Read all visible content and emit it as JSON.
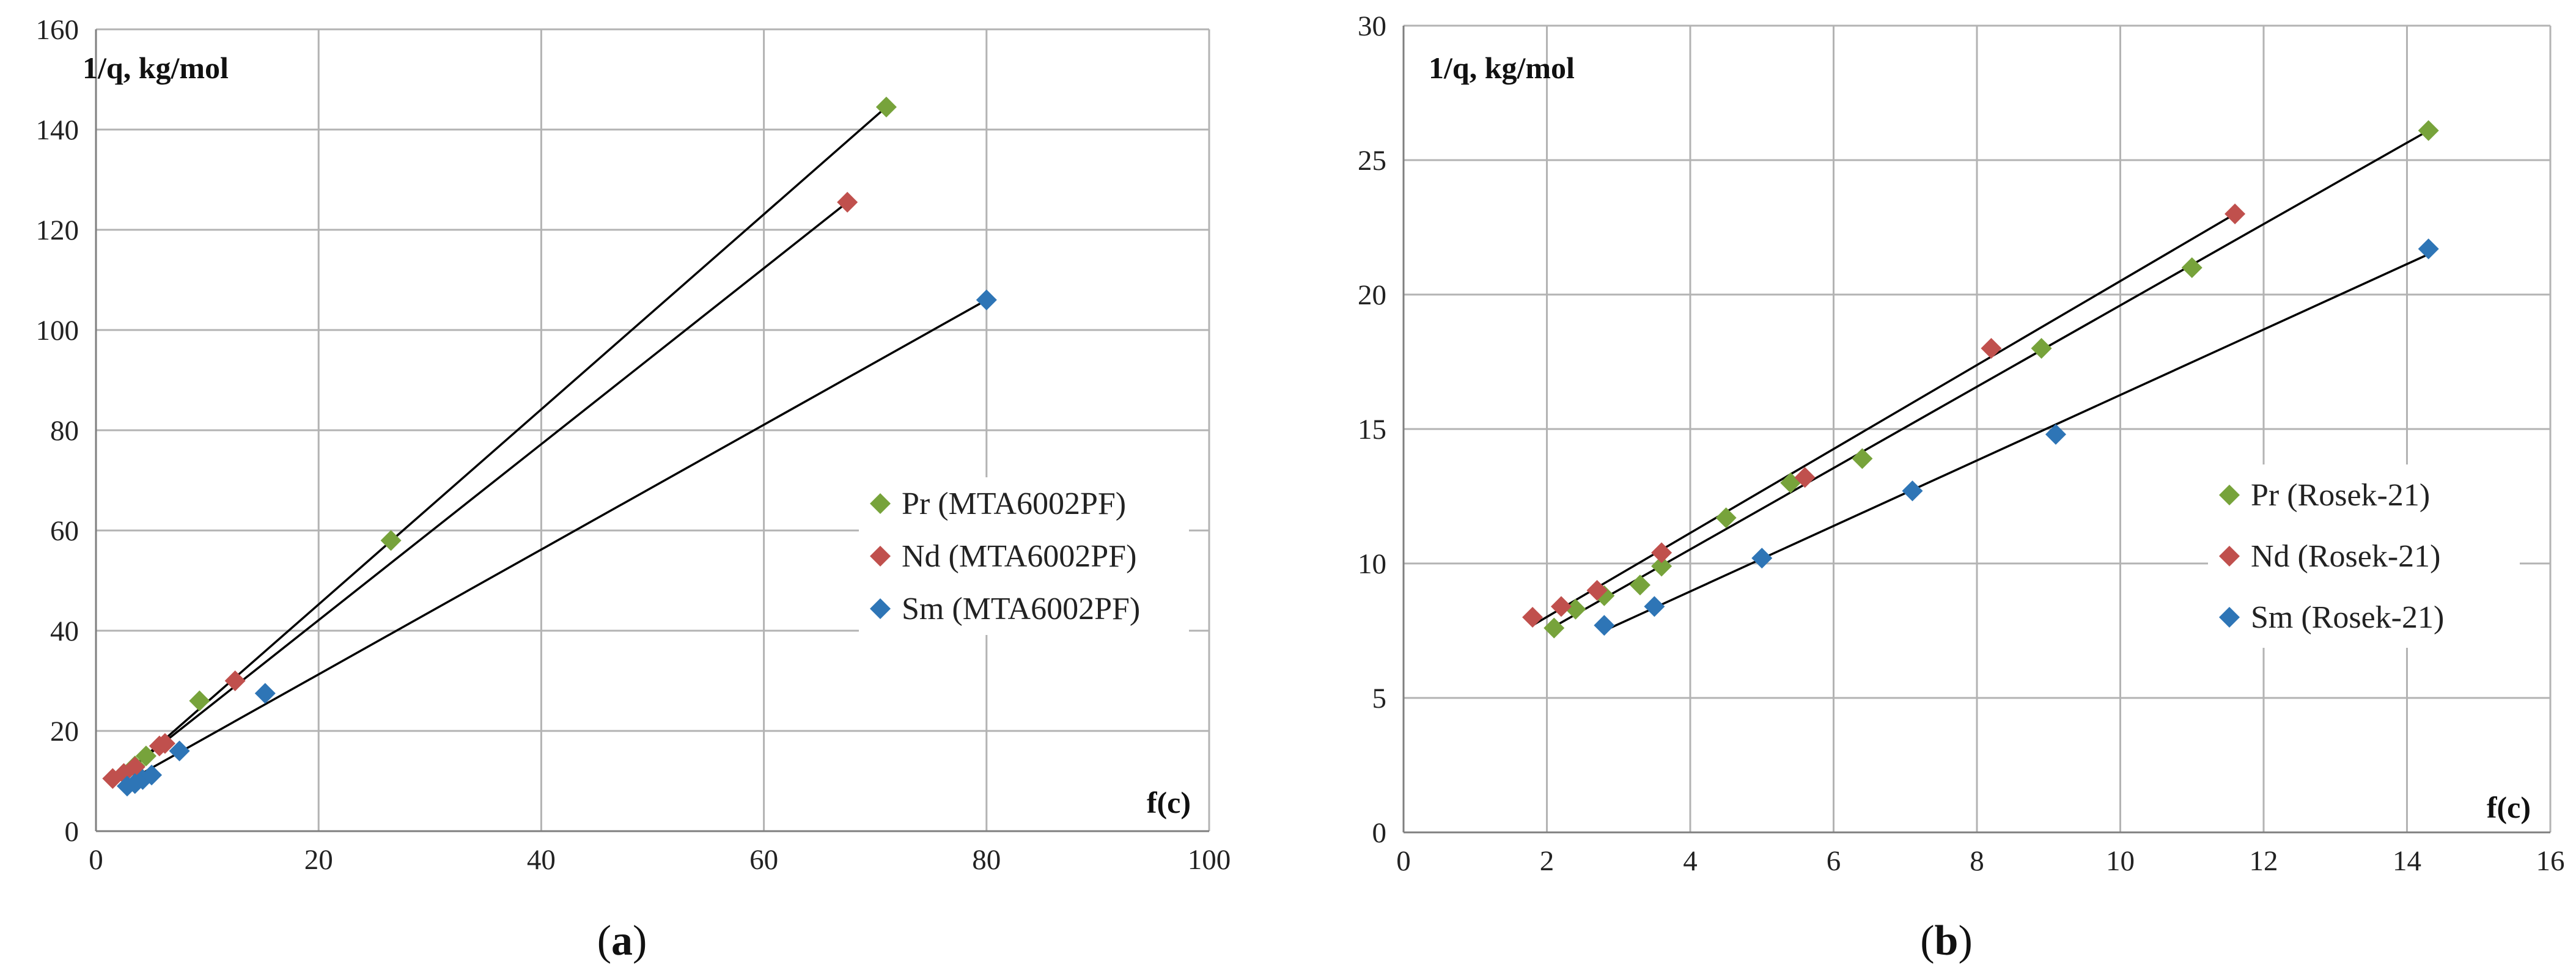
{
  "chart_data": [
    {
      "type": "scatter",
      "panel_label": {
        "open": "(",
        "letter": "a",
        "close": ")"
      },
      "xlabel": "f(c)",
      "ylabel": "1/q, kg/mol",
      "xlim": [
        0,
        100
      ],
      "ylim": [
        0,
        160
      ],
      "xticks": [
        0,
        20,
        40,
        60,
        80,
        100
      ],
      "yticks": [
        0,
        20,
        40,
        60,
        80,
        100,
        120,
        140,
        160
      ],
      "grid": true,
      "legend_position": "right",
      "series": [
        {
          "name": "Pr (MTA6002PF)",
          "color": "#77A33B",
          "points": [
            [
              2.5,
              11.5
            ],
            [
              3.5,
              13.0
            ],
            [
              4.5,
              15.0
            ],
            [
              9.3,
              26.0
            ],
            [
              26.5,
              58.0
            ],
            [
              71.0,
              144.5
            ]
          ],
          "fit": [
            [
              2.3,
              10.8
            ],
            [
              71.0,
              144.5
            ]
          ]
        },
        {
          "name": "Nd (MTA6002PF)",
          "color": "#C0504D",
          "points": [
            [
              1.5,
              10.5
            ],
            [
              2.5,
              11.5
            ],
            [
              3.5,
              12.8
            ],
            [
              5.7,
              17.0
            ],
            [
              6.2,
              17.5
            ],
            [
              12.5,
              30.0
            ],
            [
              67.5,
              125.5
            ]
          ],
          "fit": [
            [
              2.0,
              10.5
            ],
            [
              67.5,
              125.5
            ]
          ]
        },
        {
          "name": "Sm (MTA6002PF)",
          "color": "#2E75B6",
          "points": [
            [
              2.8,
              9.0
            ],
            [
              3.5,
              9.5
            ],
            [
              4.2,
              10.3
            ],
            [
              5.0,
              11.2
            ],
            [
              7.5,
              16.0
            ],
            [
              15.2,
              27.5
            ],
            [
              80.0,
              106.0
            ]
          ],
          "fit": [
            [
              2.5,
              9.5
            ],
            [
              80.0,
              106.0
            ]
          ]
        }
      ]
    },
    {
      "type": "scatter",
      "panel_label": {
        "open": "(",
        "letter": "b",
        "close": ")"
      },
      "xlabel": "f(c)",
      "ylabel": "1/q, kg/mol",
      "xlim": [
        0,
        16
      ],
      "ylim": [
        0,
        30
      ],
      "xticks": [
        0,
        2,
        4,
        6,
        8,
        10,
        12,
        14,
        16
      ],
      "yticks": [
        0,
        5,
        10,
        15,
        20,
        25,
        30
      ],
      "grid": true,
      "legend_position": "right",
      "series": [
        {
          "name": "Pr (Rosek-21)",
          "color": "#77A33B",
          "points": [
            [
              2.1,
              7.6
            ],
            [
              2.4,
              8.3
            ],
            [
              2.8,
              8.8
            ],
            [
              3.3,
              9.2
            ],
            [
              3.6,
              9.9
            ],
            [
              4.5,
              11.7
            ],
            [
              5.4,
              13.0
            ],
            [
              6.4,
              13.9
            ],
            [
              8.9,
              18.0
            ],
            [
              11.0,
              21.0
            ],
            [
              14.3,
              26.1
            ]
          ],
          "fit": [
            [
              2.0,
              7.5
            ],
            [
              14.3,
              26.1
            ]
          ]
        },
        {
          "name": "Nd (Rosek-21)",
          "color": "#C0504D",
          "points": [
            [
              1.8,
              8.0
            ],
            [
              2.2,
              8.4
            ],
            [
              2.7,
              9.0
            ],
            [
              3.6,
              10.4
            ],
            [
              5.6,
              13.2
            ],
            [
              8.2,
              18.0
            ],
            [
              11.6,
              23.0
            ]
          ],
          "fit": [
            [
              1.8,
              7.7
            ],
            [
              11.6,
              23.0
            ]
          ]
        },
        {
          "name": "Sm (Rosek-21)",
          "color": "#2E75B6",
          "points": [
            [
              2.8,
              7.7
            ],
            [
              3.5,
              8.4
            ],
            [
              5.0,
              10.2
            ],
            [
              7.1,
              12.7
            ],
            [
              9.1,
              14.8
            ],
            [
              14.3,
              21.7
            ]
          ],
          "fit": [
            [
              2.8,
              7.5
            ],
            [
              14.3,
              21.5
            ]
          ]
        }
      ]
    }
  ]
}
